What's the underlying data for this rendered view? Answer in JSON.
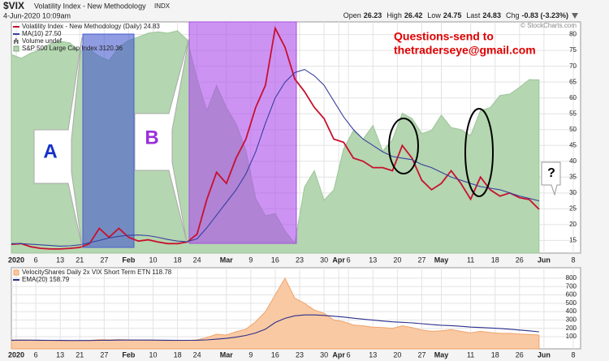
{
  "header": {
    "symbol": "$VIX",
    "name": "Volatility Index - New Methodology",
    "exchange": "INDX",
    "timestamp": "4-Jun-2020 10:09am",
    "quote": [
      {
        "label": "Open",
        "value": "26.23"
      },
      {
        "label": "High",
        "value": "26.42"
      },
      {
        "label": "Low",
        "value": "24.75"
      },
      {
        "label": "Last",
        "value": "24.83"
      },
      {
        "label": "Chg",
        "value": "-0.83 (-3.23%)"
      }
    ],
    "copyright": "© StockCharts.com"
  },
  "chart_data": [
    {
      "type": "line",
      "grid": true,
      "x": [
        0,
        2,
        4,
        6,
        8,
        10,
        12,
        14,
        16,
        18,
        20,
        22,
        24,
        26,
        28,
        30,
        32,
        34,
        36,
        38,
        40,
        42,
        44,
        46,
        48,
        50,
        52,
        54,
        56,
        58,
        60,
        62,
        64,
        66,
        68,
        70,
        72,
        74,
        76,
        78,
        80,
        82,
        84,
        86,
        88,
        90,
        92,
        94,
        96,
        98,
        100,
        102,
        104,
        106,
        108
      ],
      "xlim": [
        0,
        116
      ],
      "xticks": [
        {
          "value": 1,
          "label": "2020"
        },
        {
          "value": 5,
          "label": "6"
        },
        {
          "value": 10,
          "label": "13"
        },
        {
          "value": 14,
          "label": "21"
        },
        {
          "value": 19,
          "label": "27"
        },
        {
          "value": 24,
          "label": "Feb"
        },
        {
          "value": 29,
          "label": "10"
        },
        {
          "value": 34,
          "label": "18"
        },
        {
          "value": 38,
          "label": "24"
        },
        {
          "value": 44,
          "label": "Mar"
        },
        {
          "value": 49,
          "label": "9"
        },
        {
          "value": 54,
          "label": "16"
        },
        {
          "value": 59,
          "label": "23"
        },
        {
          "value": 64,
          "label": "30"
        },
        {
          "value": 67,
          "label": "Apr"
        },
        {
          "value": 69,
          "label": "6"
        },
        {
          "value": 74,
          "label": "13"
        },
        {
          "value": 79,
          "label": "20"
        },
        {
          "value": 84,
          "label": "27"
        },
        {
          "value": 88,
          "label": "May"
        },
        {
          "value": 94,
          "label": "11"
        },
        {
          "value": 99,
          "label": "18"
        },
        {
          "value": 104,
          "label": "26"
        },
        {
          "value": 109,
          "label": "Jun"
        },
        {
          "value": 115,
          "label": "8"
        }
      ],
      "ylim": [
        11,
        84
      ],
      "yticks": [
        15,
        20,
        25,
        30,
        35,
        40,
        45,
        50,
        55,
        60,
        65,
        70,
        75,
        80
      ],
      "y2lim": [
        2184,
        3434
      ],
      "series": [
        {
          "name": "Volatility Index - New Methodology (Daily) 24.83",
          "color": "#c8102e",
          "values": [
            13.8,
            14,
            13,
            12.5,
            12.3,
            12.3,
            12.5,
            12.8,
            14,
            18.8,
            16,
            18.8,
            16,
            14.8,
            15.2,
            14.5,
            14,
            14,
            14.5,
            17,
            27.9,
            36.5,
            33,
            41,
            47,
            57,
            64,
            82,
            76,
            66,
            62,
            57,
            53.5,
            47,
            46,
            41,
            40,
            38,
            38,
            37,
            45,
            41,
            34,
            31,
            33,
            37,
            33,
            28,
            35,
            31,
            29,
            30,
            28.5,
            27.9,
            24.83
          ]
        },
        {
          "name": "MA(10) 27.50",
          "color": "#3a3f9e",
          "values": [
            14,
            14,
            13.8,
            13.6,
            13.4,
            13.2,
            13.3,
            13.6,
            14.3,
            15,
            15.8,
            16.3,
            16.6,
            16.7,
            16.5,
            16,
            15.3,
            14.8,
            14.6,
            15.5,
            19,
            23,
            27,
            31,
            36,
            43,
            52,
            60,
            65,
            68,
            69,
            67,
            64,
            59,
            54,
            50,
            47,
            45,
            43,
            41.5,
            41,
            40.5,
            39,
            38,
            36.5,
            35,
            34,
            33,
            32,
            31.5,
            31,
            30,
            29,
            28.3,
            27.5
          ]
        },
        {
          "name": "S&P 500 Large Cap Index 3120.36",
          "color": "#b4d6b0",
          "style": "area",
          "axis": "y2",
          "values": [
            3258,
            3237,
            3266,
            3283,
            3317,
            3329,
            3321,
            3276,
            3283,
            3248,
            3225,
            3298,
            3334,
            3352,
            3373,
            3380,
            3373,
            3386,
            3337,
            3128,
            2954,
            3090,
            2972,
            2882,
            2741,
            2480,
            2386,
            2398,
            2305,
            2237,
            2541,
            2630,
            2470,
            2526,
            2749,
            2846,
            2800,
            2874,
            2736,
            2797,
            2940,
            2912,
            2830,
            2848,
            2930,
            2863,
            2852,
            2820,
            2955,
            2971,
            3036,
            3044,
            3080,
            3122,
            3120.36
          ]
        }
      ],
      "volume_label": "Volume undef",
      "annotations": [
        "Questions-send to",
        "thetraderseye@gmail.com"
      ],
      "callouts": [
        "A",
        "B",
        "?"
      ]
    },
    {
      "type": "line",
      "grid": true,
      "x": [
        0,
        2,
        4,
        6,
        8,
        10,
        12,
        14,
        16,
        18,
        20,
        22,
        24,
        26,
        28,
        30,
        32,
        34,
        36,
        38,
        40,
        42,
        44,
        46,
        48,
        50,
        52,
        54,
        56,
        58,
        60,
        62,
        64,
        66,
        68,
        70,
        72,
        74,
        76,
        78,
        80,
        82,
        84,
        86,
        88,
        90,
        92,
        94,
        96,
        98,
        100,
        102,
        104,
        106,
        108
      ],
      "xlim": [
        0,
        116
      ],
      "xticks": [
        {
          "value": 1,
          "label": "2020"
        },
        {
          "value": 5,
          "label": "6"
        },
        {
          "value": 10,
          "label": "13"
        },
        {
          "value": 14,
          "label": "21"
        },
        {
          "value": 19,
          "label": "27"
        },
        {
          "value": 24,
          "label": "Feb"
        },
        {
          "value": 29,
          "label": "10"
        },
        {
          "value": 34,
          "label": "18"
        },
        {
          "value": 38,
          "label": "24"
        },
        {
          "value": 44,
          "label": "Mar"
        },
        {
          "value": 49,
          "label": "9"
        },
        {
          "value": 54,
          "label": "16"
        },
        {
          "value": 59,
          "label": "23"
        },
        {
          "value": 64,
          "label": "30"
        },
        {
          "value": 67,
          "label": "Apr"
        },
        {
          "value": 69,
          "label": "6"
        },
        {
          "value": 74,
          "label": "13"
        },
        {
          "value": 79,
          "label": "20"
        },
        {
          "value": 84,
          "label": "27"
        },
        {
          "value": 88,
          "label": "May"
        },
        {
          "value": 94,
          "label": "11"
        },
        {
          "value": 99,
          "label": "18"
        },
        {
          "value": 104,
          "label": "26"
        },
        {
          "value": 109,
          "label": "Jun"
        },
        {
          "value": 115,
          "label": "8"
        }
      ],
      "ylim": [
        -45,
        925
      ],
      "yticks": [
        100,
        200,
        300,
        400,
        500,
        600,
        700,
        800
      ],
      "series": [
        {
          "name": "VelocityShares Daily 2x VIX Short Term ETN 118.78",
          "color": "#f9c9a3",
          "style": "area",
          "values": [
            60,
            62,
            58,
            55,
            53,
            52,
            52,
            53,
            56,
            66,
            62,
            66,
            62,
            58,
            58,
            56,
            54,
            54,
            56,
            62,
            90,
            130,
            120,
            160,
            190,
            280,
            400,
            600,
            800,
            560,
            500,
            420,
            380,
            300,
            280,
            240,
            230,
            215,
            210,
            200,
            230,
            210,
            180,
            165,
            170,
            185,
            165,
            145,
            165,
            150,
            140,
            140,
            132,
            128,
            118.78
          ]
        },
        {
          "name": "EMA(20) 158.79",
          "color": "#2b2f8c",
          "values": [
            58,
            59,
            59,
            58,
            57,
            56,
            55,
            55,
            55,
            57,
            58,
            60,
            60,
            60,
            60,
            59,
            58,
            57,
            57,
            58,
            62,
            70,
            80,
            95,
            115,
            145,
            190,
            270,
            320,
            350,
            360,
            360,
            355,
            345,
            335,
            322,
            310,
            298,
            288,
            278,
            272,
            265,
            256,
            245,
            237,
            232,
            225,
            215,
            210,
            204,
            198,
            190,
            180,
            170,
            158.79
          ]
        }
      ]
    }
  ]
}
